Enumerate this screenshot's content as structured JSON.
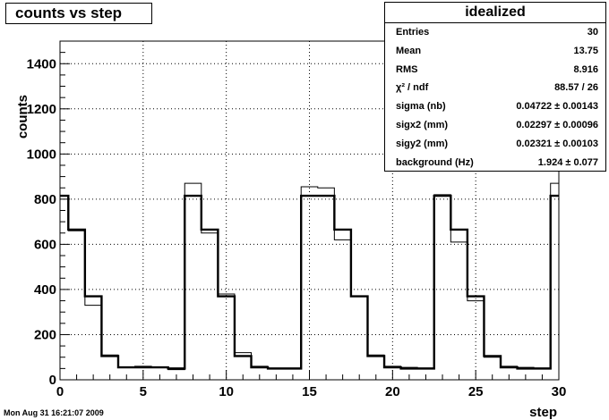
{
  "chart_data": {
    "type": "line",
    "title": "counts vs step",
    "xlabel": "step",
    "ylabel": "counts",
    "xlim": [
      0,
      30
    ],
    "ylim": [
      0,
      1500
    ],
    "grid": true,
    "x_ticks": [
      0,
      5,
      10,
      15,
      20,
      25,
      30
    ],
    "y_ticks": [
      0,
      200,
      400,
      600,
      800,
      1000,
      1200,
      1400
    ],
    "series": [
      {
        "values": [
          815,
          660,
          330,
          110,
          55,
          60,
          55,
          45,
          870,
          650,
          380,
          120,
          60,
          50,
          50,
          855,
          850,
          620,
          370,
          110,
          60,
          55,
          50,
          820,
          610,
          350,
          100,
          60,
          55,
          50,
          870
        ]
      },
      {
        "values": [
          815,
          665,
          370,
          105,
          55,
          55,
          55,
          50,
          815,
          665,
          370,
          105,
          55,
          50,
          50,
          815,
          815,
          665,
          370,
          105,
          55,
          50,
          50,
          815,
          665,
          370,
          105,
          55,
          50,
          50,
          815
        ]
      }
    ]
  },
  "stats": {
    "name": "idealized",
    "rows": [
      {
        "label": "Entries",
        "value": "30"
      },
      {
        "label": "Mean",
        "value": "13.75"
      },
      {
        "label": "RMS",
        "value": "8.916"
      },
      {
        "label": "χ² / ndf",
        "value": "88.57 / 26"
      },
      {
        "label": "sigma (nb)",
        "value": "0.04722 ± 0.00143"
      },
      {
        "label": "sigx2 (mm)",
        "value": "0.02297 ± 0.00096"
      },
      {
        "label": "sigy2 (mm)",
        "value": "0.02321 ± 0.00103"
      },
      {
        "label": "background (Hz)",
        "value": "1.924 ± 0.077"
      }
    ]
  },
  "footer": "Mon Aug 31 16:21:07 2009"
}
